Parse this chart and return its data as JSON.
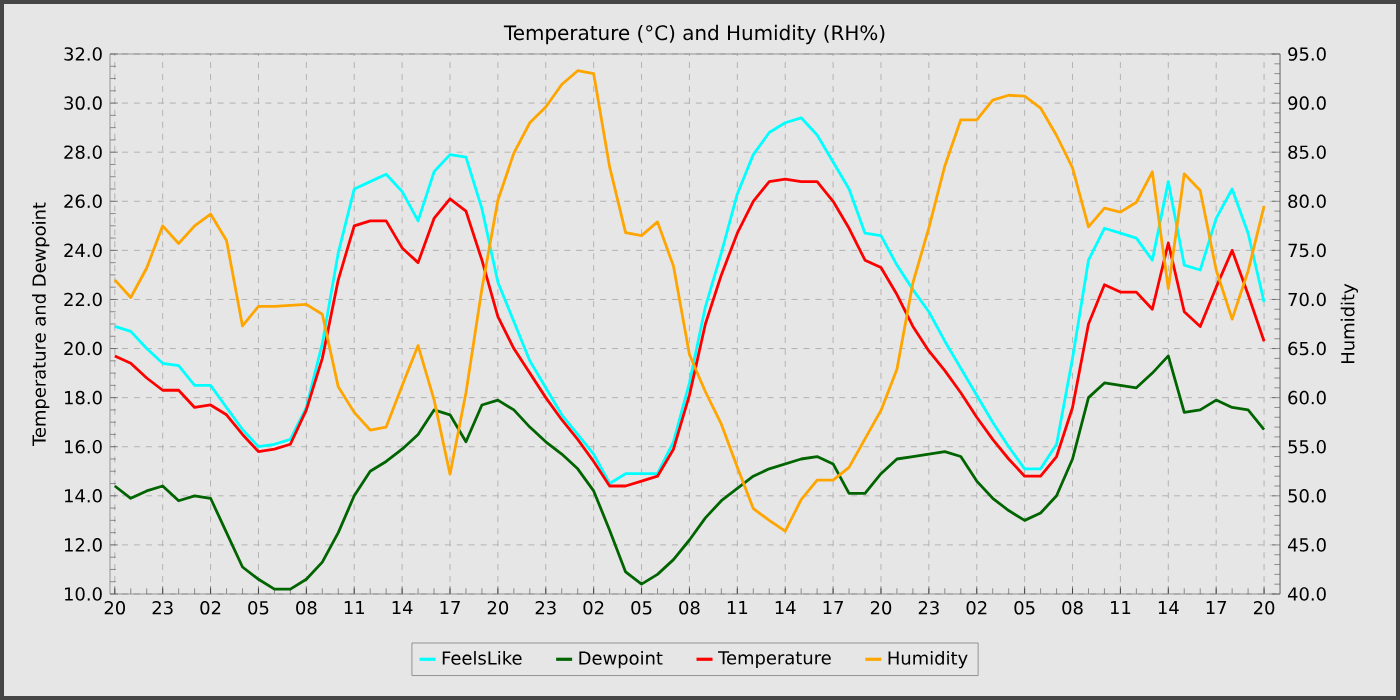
{
  "chart_data": {
    "type": "line",
    "title": "Temperature (°C) and Humidity (RH%)",
    "ylabel": "Temperature and Dewpoint",
    "y2label": "Humidity",
    "ylim": [
      10,
      32
    ],
    "y2lim": [
      40,
      95
    ],
    "grid": true,
    "legend": "bottom",
    "categories": [
      "20",
      null,
      null,
      "23",
      null,
      null,
      "02",
      null,
      null,
      "05",
      null,
      null,
      "08",
      null,
      null,
      "11",
      null,
      null,
      "14",
      null,
      null,
      "17",
      null,
      null,
      "20",
      null,
      null,
      "23",
      null,
      null,
      "02",
      null,
      null,
      "05",
      null,
      null,
      "08",
      null,
      null,
      "11",
      null,
      null,
      "14",
      null,
      null,
      "17",
      null,
      null,
      "20",
      null,
      null,
      "23",
      null,
      null,
      "02",
      null,
      null,
      "05",
      null,
      null,
      "08",
      null,
      null,
      "11",
      null,
      null,
      "14",
      null,
      null,
      "17",
      null,
      null,
      "20"
    ],
    "yticks": [
      {
        "value": 10,
        "label": "10.0"
      },
      {
        "value": 12,
        "label": "12.0"
      },
      {
        "value": 14,
        "label": "14.0"
      },
      {
        "value": 16,
        "label": "16.0"
      },
      {
        "value": 18,
        "label": "18.0"
      },
      {
        "value": 20,
        "label": "20.0"
      },
      {
        "value": 22,
        "label": "22.0"
      },
      {
        "value": 24,
        "label": "24.0"
      },
      {
        "value": 26,
        "label": "26.0"
      },
      {
        "value": 28,
        "label": "28.0"
      },
      {
        "value": 30,
        "label": "30.0"
      },
      {
        "value": 32,
        "label": "32.0"
      }
    ],
    "y2ticks": [
      {
        "value": 40,
        "label": "40.0"
      },
      {
        "value": 45,
        "label": "45.0"
      },
      {
        "value": 50,
        "label": "50.0"
      },
      {
        "value": 55,
        "label": "55.0"
      },
      {
        "value": 60,
        "label": "60.0"
      },
      {
        "value": 65,
        "label": "65.0"
      },
      {
        "value": 70,
        "label": "70.0"
      },
      {
        "value": 75,
        "label": "75.0"
      },
      {
        "value": 80,
        "label": "80.0"
      },
      {
        "value": 85,
        "label": "85.0"
      },
      {
        "value": 90,
        "label": "90.0"
      },
      {
        "value": 95,
        "label": "95.0"
      }
    ],
    "series": [
      {
        "name": "FeelsLike",
        "color": "#00ffff",
        "values": [
          20.9,
          20.7,
          20.0,
          19.4,
          19.3,
          18.5,
          18.5,
          17.6,
          16.7,
          16.0,
          16.1,
          16.3,
          17.6,
          20.2,
          23.9,
          26.5,
          26.8,
          27.1,
          26.4,
          25.2,
          27.2,
          27.9,
          27.8,
          25.7,
          22.7,
          21.1,
          19.5,
          18.4,
          17.3,
          16.5,
          15.7,
          14.5,
          14.9,
          14.9,
          14.9,
          16.2,
          18.6,
          21.7,
          23.9,
          26.3,
          27.9,
          28.8,
          29.2,
          29.4,
          28.7,
          27.6,
          26.5,
          24.7,
          24.6,
          23.4,
          22.4,
          21.5,
          20.3,
          19.2,
          18.1,
          17.0,
          16.0,
          15.1,
          15.1,
          16.1,
          19.6,
          23.6,
          24.9,
          24.7,
          24.5,
          23.6,
          26.8,
          23.4,
          23.2,
          25.3,
          26.5,
          24.7,
          21.9
        ]
      },
      {
        "name": "Dewpoint",
        "color": "#006400",
        "values": [
          14.4,
          13.9,
          14.2,
          14.4,
          13.8,
          14.0,
          13.9,
          12.5,
          11.1,
          10.6,
          10.2,
          10.2,
          10.6,
          11.3,
          12.5,
          14.0,
          15.0,
          15.4,
          15.9,
          16.5,
          17.5,
          17.3,
          16.2,
          17.7,
          17.9,
          17.5,
          16.8,
          16.2,
          15.7,
          15.1,
          14.2,
          12.6,
          10.9,
          10.4,
          10.8,
          11.4,
          12.2,
          13.1,
          13.8,
          14.3,
          14.8,
          15.1,
          15.3,
          15.5,
          15.6,
          15.3,
          14.1,
          14.1,
          14.9,
          15.5,
          15.6,
          15.7,
          15.8,
          15.6,
          14.6,
          13.9,
          13.4,
          13.0,
          13.3,
          14.0,
          15.5,
          18.0,
          18.6,
          18.5,
          18.4,
          19.0,
          19.7,
          17.4,
          17.5,
          17.9,
          17.6,
          17.5,
          16.7
        ]
      },
      {
        "name": "Temperature",
        "color": "#ff0000",
        "values": [
          19.7,
          19.4,
          18.8,
          18.3,
          18.3,
          17.6,
          17.7,
          17.3,
          16.5,
          15.8,
          15.9,
          16.1,
          17.5,
          19.6,
          22.8,
          25.0,
          25.2,
          25.2,
          24.1,
          23.5,
          25.3,
          26.1,
          25.6,
          23.6,
          21.3,
          20.0,
          19.0,
          18.0,
          17.1,
          16.3,
          15.4,
          14.4,
          14.4,
          14.6,
          14.8,
          15.9,
          18.1,
          21.0,
          23.0,
          24.7,
          26.0,
          26.8,
          26.9,
          26.8,
          26.8,
          26.0,
          24.9,
          23.6,
          23.3,
          22.2,
          20.9,
          19.9,
          19.1,
          18.2,
          17.2,
          16.3,
          15.5,
          14.8,
          14.8,
          15.6,
          17.6,
          21.0,
          22.6,
          22.3,
          22.3,
          21.6,
          24.3,
          21.5,
          20.9,
          22.5,
          24.0,
          22.2,
          20.3
        ]
      },
      {
        "name": "Humidity",
        "color": "#ffa500",
        "axis": "y2",
        "values": [
          72.0,
          70.2,
          73.2,
          77.5,
          75.7,
          77.5,
          78.7,
          76.0,
          67.3,
          69.3,
          69.3,
          69.4,
          69.5,
          68.5,
          61.1,
          58.5,
          56.7,
          57.0,
          61.2,
          65.3,
          59.8,
          52.2,
          60.5,
          71.1,
          80.1,
          84.9,
          88.0,
          89.6,
          91.9,
          93.3,
          93.0,
          83.5,
          76.8,
          76.5,
          77.9,
          73.4,
          64.4,
          60.6,
          57.3,
          52.9,
          48.7,
          47.5,
          46.4,
          49.6,
          51.6,
          51.6,
          52.9,
          55.8,
          58.7,
          62.9,
          71.7,
          77.3,
          83.6,
          88.3,
          88.3,
          90.3,
          90.8,
          90.7,
          89.5,
          86.7,
          83.4,
          77.4,
          79.3,
          78.9,
          79.9,
          83.0,
          71.1,
          82.8,
          81.1,
          73.0,
          68.0,
          72.9,
          79.5
        ]
      }
    ]
  }
}
